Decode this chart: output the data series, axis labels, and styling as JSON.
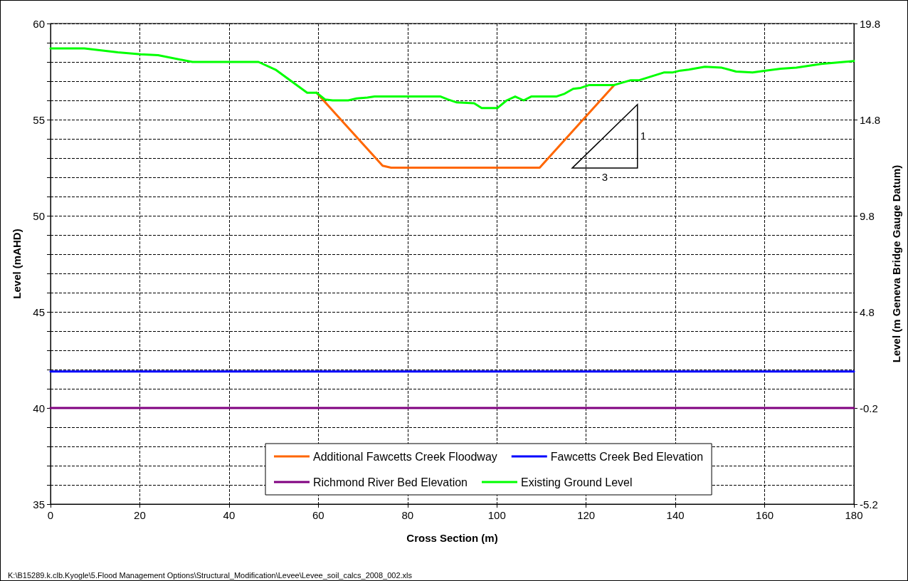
{
  "chart_data": {
    "type": "line",
    "xlabel": "Cross Section (m)",
    "ylabel": "Level (mAHD)",
    "y2label": "Level (m Geneva Bridge Gauge Datum)",
    "xlim": [
      0,
      180
    ],
    "xticks": [
      0,
      20,
      40,
      60,
      80,
      100,
      120,
      140,
      160,
      180
    ],
    "ylim": [
      35,
      60
    ],
    "yticks": [
      35,
      {
        "value": 36,
        "label": null
      },
      {
        "value": 37,
        "label": null
      },
      {
        "value": 38,
        "label": null
      },
      {
        "value": 39,
        "label": null
      },
      40,
      {
        "value": 41,
        "label": null
      },
      {
        "value": 42,
        "label": null
      },
      {
        "value": 43,
        "label": null
      },
      {
        "value": 44,
        "label": null
      },
      45,
      {
        "value": 46,
        "label": null
      },
      {
        "value": 47,
        "label": null
      },
      {
        "value": 48,
        "label": null
      },
      {
        "value": 49,
        "label": null
      },
      50,
      {
        "value": 51,
        "label": null
      },
      {
        "value": 52,
        "label": null
      },
      {
        "value": 53,
        "label": null
      },
      {
        "value": 54,
        "label": null
      },
      55,
      {
        "value": 56,
        "label": null
      },
      {
        "value": 57,
        "label": null
      },
      {
        "value": 58,
        "label": null
      },
      {
        "value": 59,
        "label": null
      },
      60
    ],
    "y2lim": [
      -5.2,
      19.8
    ],
    "y2ticks": [
      -5.2,
      -0.2,
      4.8,
      9.8,
      14.8,
      19.8
    ],
    "grid": true,
    "legend": "bottom",
    "marker": "none",
    "line_style": "solid",
    "series": [
      {
        "name": "Additional Fawcetts Creek Floodway",
        "color": "#ff6600",
        "x": [
          59.6,
          74.4,
          76.3,
          109.6,
          126.3
        ],
        "values": [
          56.4,
          52.6,
          52.5,
          52.5,
          56.8
        ]
      },
      {
        "name": "Fawcetts Creek Bed Elevation",
        "color": "#0000ff",
        "x": [
          0,
          180
        ],
        "values": [
          41.9,
          41.9
        ]
      },
      {
        "name": "Richmond River Bed Elevation",
        "color": "#800080",
        "x": [
          0,
          180
        ],
        "values": [
          40.0,
          40.0
        ]
      },
      {
        "name": "Existing Ground Level",
        "color": "#00ff00",
        "x": [
          0,
          7.6,
          15.1,
          20.2,
          24.1,
          31.8,
          46.6,
          50.4,
          57.5,
          59.6,
          61.5,
          63.2,
          66.7,
          68.6,
          71,
          72.6,
          87.4,
          89,
          90.9,
          94.9,
          96.6,
          100.1,
          102.2,
          104.1,
          106,
          107.7,
          113.3,
          115.2,
          117.1,
          118.8,
          120.7,
          126.3,
          130,
          131.9,
          137.4,
          139.3,
          141.1,
          143,
          146.6,
          150.4,
          153.6,
          157.3,
          160.2,
          163.6,
          167.1,
          172.7,
          180
        ],
        "values": [
          58.7,
          58.7,
          58.5,
          58.4,
          58.35,
          58.0,
          58.0,
          57.6,
          56.4,
          56.4,
          56.05,
          56.0,
          56.0,
          56.1,
          56.15,
          56.2,
          56.2,
          56.05,
          55.9,
          55.85,
          55.6,
          55.6,
          56.0,
          56.2,
          56.0,
          56.2,
          56.2,
          56.35,
          56.6,
          56.65,
          56.8,
          56.8,
          57.05,
          57.05,
          57.45,
          57.45,
          57.55,
          57.6,
          57.75,
          57.7,
          57.5,
          57.45,
          57.55,
          57.65,
          57.7,
          57.9,
          58.05
        ]
      }
    ],
    "annotations": [
      "K:\\B15289.k.clb.Kyogle\\5.Flood Management Options\\Structural_Modification\\Levee\\Levee_soil_calcs_2008_002.xls",
      "1",
      "3"
    ]
  }
}
